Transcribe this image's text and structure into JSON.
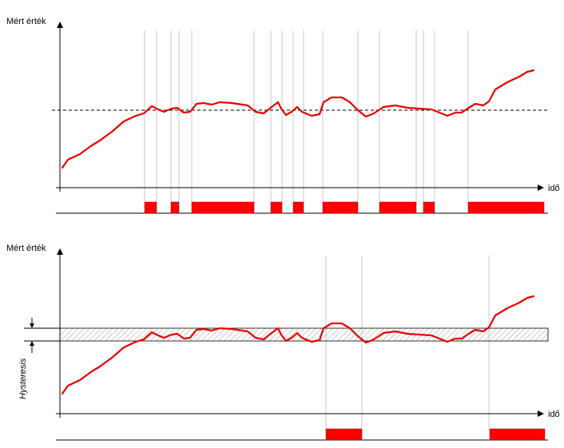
{
  "top": {
    "y_label": "Mért érték",
    "x_label": "idő"
  },
  "bottom": {
    "y_label": "Mért érték",
    "x_label": "idő",
    "band_label": "Hysteresis"
  }
}
